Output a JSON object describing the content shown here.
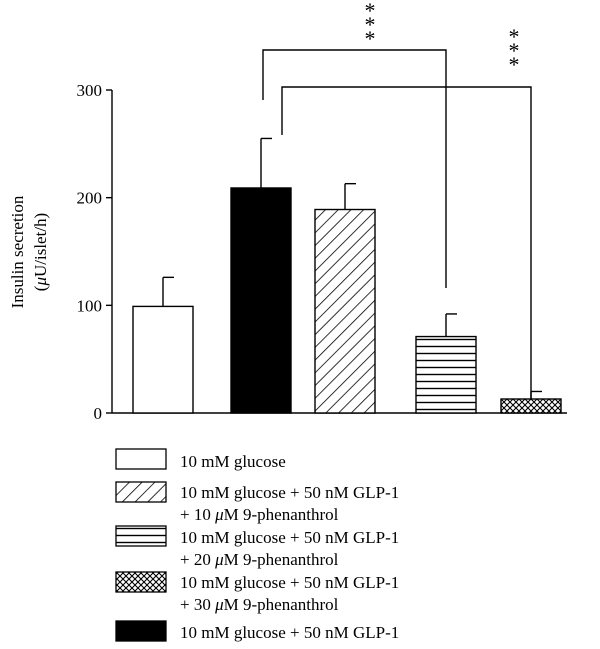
{
  "chart_data": {
    "type": "bar",
    "ylabel_line1": "Insulin secretion",
    "ylabel_line2_prefix": "(",
    "ylabel_line2_mu": "μ",
    "ylabel_line2_rest": "U/islet/h)",
    "ylim": [
      0,
      300
    ],
    "yticks": [
      0,
      100,
      200,
      300
    ],
    "bars": [
      {
        "label": "10 mM glucose",
        "value": 99,
        "error": 27,
        "fill": "white"
      },
      {
        "label": "10 mM glucose + 50 nM GLP-1",
        "value": 209,
        "error": 46,
        "fill": "black"
      },
      {
        "label": "10 mM glucose + 50 nM GLP-1 + 10 μM 9-phenanthrol",
        "value": 189,
        "error": 24,
        "fill": "diagonal"
      },
      {
        "label": "10 mM glucose + 50 nM GLP-1 + 20 μM 9-phenanthrol",
        "value": 71,
        "error": 21,
        "fill": "horizontal"
      },
      {
        "label": "10 mM glucose + 50 nM GLP-1 + 30 μM 9-phenanthrol",
        "value": 13,
        "error": 7,
        "fill": "crosshatch"
      }
    ],
    "significance": [
      {
        "from_bar": 1,
        "to_bar": 3,
        "label": "***"
      },
      {
        "from_bar": 1,
        "to_bar": 4,
        "label": "***"
      }
    ]
  },
  "legend": [
    {
      "fill": "white",
      "line1": "10 mM glucose",
      "line2": ""
    },
    {
      "fill": "diagonal",
      "line1": "10 mM glucose + 50 nM GLP-1",
      "line2_prefix": "+ 10 ",
      "line2_mu": "μ",
      "line2_rest": "M 9-phenanthrol"
    },
    {
      "fill": "horizontal",
      "line1": "10 mM glucose + 50 nM GLP-1",
      "line2_prefix": "+ 20 ",
      "line2_mu": "μ",
      "line2_rest": "M 9-phenanthrol"
    },
    {
      "fill": "crosshatch",
      "line1": "10 mM glucose + 50 nM GLP-1",
      "line2_prefix": "+ 30 ",
      "line2_mu": "μ",
      "line2_rest": "M 9-phenanthrol"
    },
    {
      "fill": "black",
      "line1": "10 mM glucose + 50 nM GLP-1",
      "line2": ""
    }
  ]
}
